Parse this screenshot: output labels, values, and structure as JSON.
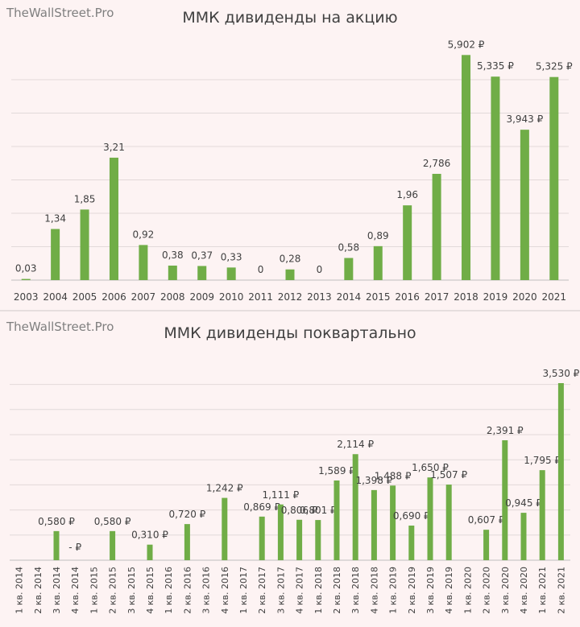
{
  "chart_data": [
    {
      "type": "bar",
      "watermark": "TheWallStreet.Pro",
      "title": "ММК дивиденды  на акцию",
      "color": "#70ad47",
      "categories": [
        "2003",
        "2004",
        "2005",
        "2006",
        "2007",
        "2008",
        "2009",
        "2010",
        "2011",
        "2012",
        "2013",
        "2014",
        "2015",
        "2016",
        "2017",
        "2018",
        "2019",
        "2020",
        "2021"
      ],
      "values": [
        0.03,
        1.34,
        1.85,
        3.21,
        0.92,
        0.38,
        0.37,
        0.33,
        0,
        0.28,
        0,
        0.58,
        0.89,
        1.96,
        2.786,
        5.902,
        5.335,
        3.943,
        5.325
      ],
      "labels": [
        "0,03",
        "1,34",
        "1,85",
        "3,21",
        "0,92",
        "0,38",
        "0,37",
        "0,33",
        "0",
        "0,28",
        "0",
        "0,58",
        "0,89",
        "1,96",
        "2,786",
        "5,902 ₽",
        "5,335 ₽",
        "3,943 ₽",
        "5,325 ₽"
      ],
      "ylim": [
        0,
        6.5
      ],
      "grid": true
    },
    {
      "type": "bar",
      "watermark": "TheWallStreet.Pro",
      "title": "ММК дивиденды  поквартально",
      "color": "#70ad47",
      "categories": [
        "1 кв. 2014",
        "2 кв. 2014",
        "3 кв. 2014",
        "4 кв. 2014",
        "1 кв. 2015",
        "2 кв. 2015",
        "3 кв. 2015",
        "4 кв. 2015",
        "1 кв. 2016",
        "2 кв. 2016",
        "3 кв. 2016",
        "4 кв. 2016",
        "1 кв. 2017",
        "2 кв. 2017",
        "3 кв. 2017",
        "4 кв. 2017",
        "1 кв. 2018",
        "2 кв. 2018",
        "3 кв. 2018",
        "4 кв. 2018",
        "1 кв. 2019",
        "2 кв. 2019",
        "3 кв. 2019",
        "4 кв. 2019",
        "1 кв. 2020",
        "2 кв. 2020",
        "3 кв. 2020",
        "4 кв. 2020",
        "1 кв. 2021",
        "2 кв. 2021"
      ],
      "values": [
        0,
        0,
        0.58,
        0,
        0,
        0.58,
        0,
        0.31,
        0,
        0.72,
        0,
        1.242,
        0,
        0.869,
        1.111,
        0.806,
        0.801,
        1.589,
        2.114,
        1.398,
        1.488,
        0.69,
        1.65,
        1.507,
        0,
        0.607,
        2.391,
        0.945,
        1.795,
        3.53
      ],
      "labels": [
        "",
        "",
        "0,580 ₽",
        "-   ₽",
        "",
        "0,580 ₽",
        "",
        "0,310 ₽",
        "",
        "0,720 ₽",
        "",
        "1,242 ₽",
        "",
        "0,869 ₽",
        "1,111 ₽",
        "0,806 ₽",
        "0,801 ₽",
        "1,589 ₽",
        "2,114 ₽",
        "1,398 ₽",
        "1,488 ₽",
        "0,690 ₽",
        "1,650 ₽",
        "1,507 ₽",
        "",
        "0,607 ₽",
        "2,391 ₽",
        "0,945 ₽",
        "1,795 ₽",
        "3,530 ₽"
      ],
      "ylim": [
        0,
        4.0
      ],
      "grid": true
    }
  ]
}
